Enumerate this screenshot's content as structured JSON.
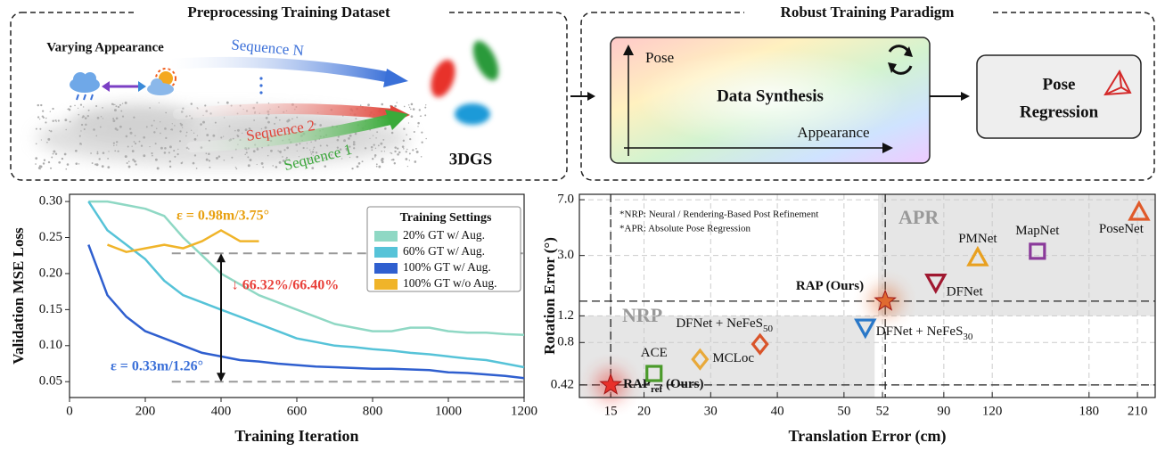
{
  "diagram": {
    "left": {
      "title": "Preprocessing Training Dataset",
      "varying_appearance": "Varying Appearance",
      "sequences": [
        "Sequence N",
        "Sequence 2",
        "Sequence 1"
      ],
      "model": "3DGS"
    },
    "right": {
      "title": "Robust Training Paradigm",
      "y_axis": "Pose",
      "center": "Data Synthesis",
      "x_axis": "Appearance",
      "output": [
        "Pose",
        "Regression"
      ]
    }
  },
  "chart_data": [
    {
      "type": "line",
      "xlabel": "Training Iteration",
      "ylabel": "Validation  MSE Loss",
      "x": [
        0,
        50,
        100,
        150,
        200,
        250,
        300,
        350,
        400,
        450,
        500,
        550,
        600,
        650,
        700,
        750,
        800,
        850,
        900,
        950,
        1000,
        1050,
        1100,
        1150,
        1200
      ],
      "xlim": [
        0,
        1200
      ],
      "xticks": [
        0,
        200,
        400,
        600,
        800,
        1000,
        1200
      ],
      "ylim": [
        0.028,
        0.31
      ],
      "yticks": [
        0.05,
        {
          "value": 0.1,
          "label": "0.10"
        },
        0.15,
        {
          "value": 0.2,
          "label": "0.20"
        },
        0.25,
        {
          "value": 0.3,
          "label": "0.30"
        }
      ],
      "legend_title": "Training Settings",
      "legend": "upper right",
      "series": [
        {
          "name": "20% GT  w/  Aug.",
          "color": "#8fd8c4",
          "values": [
            null,
            0.3,
            0.3,
            0.295,
            0.29,
            0.28,
            0.25,
            0.225,
            0.2,
            0.185,
            0.17,
            0.16,
            0.15,
            0.14,
            0.13,
            0.125,
            0.12,
            0.12,
            0.125,
            0.125,
            0.12,
            0.118,
            0.118,
            0.116,
            0.115
          ]
        },
        {
          "name": "60% GT  w/  Aug.",
          "color": "#56c3d8",
          "values": [
            null,
            0.3,
            0.26,
            0.24,
            0.22,
            0.19,
            0.17,
            0.16,
            0.15,
            0.14,
            0.13,
            0.12,
            0.11,
            0.105,
            0.1,
            0.098,
            0.095,
            0.093,
            0.09,
            0.088,
            0.085,
            0.082,
            0.08,
            0.075,
            0.07
          ]
        },
        {
          "name": "100% GT  w/  Aug.",
          "color": "#2f5fcf",
          "values": [
            null,
            0.24,
            0.17,
            0.14,
            0.12,
            0.11,
            0.1,
            0.09,
            0.085,
            0.08,
            0.078,
            0.075,
            0.073,
            0.071,
            0.07,
            0.069,
            0.068,
            0.068,
            0.067,
            0.066,
            0.063,
            0.062,
            0.06,
            0.058,
            0.055
          ]
        },
        {
          "name": "100% GT w/o Aug.",
          "color": "#f0b429",
          "values": [
            null,
            null,
            0.24,
            0.23,
            0.235,
            0.24,
            0.235,
            0.245,
            0.26,
            0.245,
            0.245,
            null,
            null,
            null,
            null,
            null,
            null,
            null,
            null,
            null,
            null,
            null,
            null,
            null,
            null
          ]
        }
      ],
      "reference_lines": [
        {
          "y": 0.228,
          "x": [
            270,
            1200
          ]
        },
        {
          "y": 0.05,
          "x": [
            270,
            1200
          ]
        }
      ],
      "arrow": {
        "x": 400,
        "y": [
          0.228,
          0.05
        ]
      },
      "annotations": [
        {
          "text": "ε = 0.98m/3.75°",
          "color": "#e8a010"
        },
        {
          "text": "↓ 66.32%/66.40%",
          "color": "#e8403a"
        },
        {
          "text": "ε = 0.33m/1.26°",
          "color": "#3a6fd8"
        }
      ]
    },
    {
      "type": "scatter",
      "xlabel": "Translation Error (cm)",
      "ylabel": "Rotation Error (°)",
      "x_segments": [
        {
          "xlim": [
            10.3,
            55.1
          ],
          "xticks": [
            15,
            20,
            30,
            40,
            50
          ]
        },
        {
          "xlim": [
            49.2,
            221
          ],
          "xticks": [
            52,
            90,
            120,
            180,
            210
          ]
        }
      ],
      "ylim": [
        0.347,
        7.6
      ],
      "yscale": "log",
      "yticks": [
        0.42,
        0.8,
        1.2,
        {
          "value": 3,
          "label": "3.0"
        },
        {
          "value": 7,
          "label": "7.0"
        }
      ],
      "grid": true,
      "notes": [
        "*NRP: Neural / Rendering-Based Post Refinement",
        "*APR: Absolute Pose Regression"
      ],
      "regions": [
        {
          "label": "NRP",
          "segment": 0,
          "x": [
            10.3,
            54.6
          ],
          "y": [
            0.347,
            1.2
          ]
        },
        {
          "label": "APR",
          "segment": 1,
          "x": [
            49.2,
            221
          ],
          "y": [
            1.2,
            7.6
          ]
        }
      ],
      "series": [
        {
          "name": "RAP",
          "name_sub": "ref",
          "name_suffix": " (Ours)",
          "marker": "star",
          "color": "#e8302a",
          "segment": 0,
          "x": [
            15
          ],
          "values": [
            0.42
          ]
        },
        {
          "name": "ACE",
          "marker": "square",
          "color": "#4a9a2a",
          "segment": 0,
          "x": [
            21.5
          ],
          "values": [
            0.5
          ]
        },
        {
          "name": "MCLoc",
          "marker": "diamond",
          "color": "#e8a93a",
          "segment": 0,
          "x": [
            28.4
          ],
          "values": [
            0.62
          ]
        },
        {
          "name": "DFNet + NeFeS",
          "name_sub": "50",
          "marker": "diamond",
          "color": "#d9542a",
          "segment": 0,
          "x": [
            37.4
          ],
          "values": [
            0.78
          ]
        },
        {
          "name": "DFNet + NeFeS",
          "name_sub": "30",
          "marker": "triangle-down",
          "color": "#2a78c8",
          "segment": 0,
          "x": [
            53.2
          ],
          "values": [
            1.01
          ]
        },
        {
          "name": "RAP (Ours)",
          "marker": "star",
          "color": "#e06a30",
          "segment": 1,
          "x": [
            53.7
          ],
          "values": [
            1.5
          ]
        },
        {
          "name": "DFNet",
          "marker": "triangle-down",
          "color": "#a01830",
          "segment": 1,
          "x": [
            85
          ],
          "values": [
            2.0
          ]
        },
        {
          "name": "PMNet",
          "marker": "triangle-up",
          "color": "#e8a020",
          "segment": 1,
          "x": [
            111
          ],
          "values": [
            2.9
          ]
        },
        {
          "name": "MapNet",
          "marker": "square",
          "color": "#8a3a9a",
          "segment": 1,
          "x": [
            148
          ],
          "values": [
            3.2
          ]
        },
        {
          "name": "PoseNet",
          "marker": "triangle-up",
          "color": "#e05a2a",
          "segment": 1,
          "x": [
            211
          ],
          "values": [
            5.8
          ]
        }
      ]
    }
  ]
}
